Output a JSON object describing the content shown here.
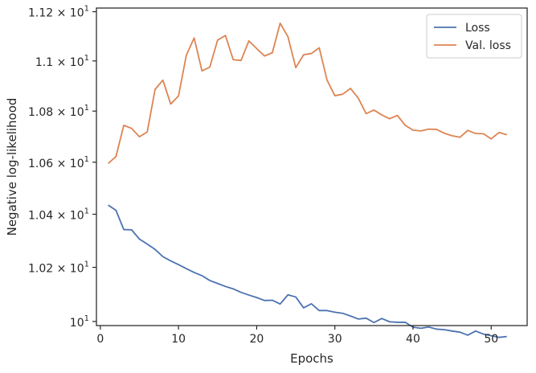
{
  "chart_data": {
    "type": "line",
    "xlabel": "Epochs",
    "ylabel": "Negative log-likelihood",
    "xlim": [
      -0.5,
      54.6
    ],
    "ylim": [
      9.985,
      11.215
    ],
    "yscale": "log",
    "grid": false,
    "legend_position": "top-right",
    "x_ticks": [
      0,
      10,
      20,
      30,
      40,
      50
    ],
    "x_tick_labels": [
      "0",
      "10",
      "20",
      "30",
      "40",
      "50"
    ],
    "y_ticks": [
      10.0,
      10.2,
      10.4,
      10.6,
      10.8,
      11.0,
      11.2
    ],
    "y_tick_labels": [
      {
        "mantissa": "",
        "base": "10",
        "exp": "1"
      },
      {
        "mantissa": "1.02 × ",
        "base": "10",
        "exp": "1"
      },
      {
        "mantissa": "1.04 × ",
        "base": "10",
        "exp": "1"
      },
      {
        "mantissa": "1.06 × ",
        "base": "10",
        "exp": "1"
      },
      {
        "mantissa": "1.08 × ",
        "base": "10",
        "exp": "1"
      },
      {
        "mantissa": "1.1 × ",
        "base": "10",
        "exp": "1"
      },
      {
        "mantissa": "1.12 × ",
        "base": "10",
        "exp": "1"
      }
    ],
    "x": [
      1,
      2,
      3,
      4,
      5,
      6,
      7,
      8,
      9,
      10,
      11,
      12,
      13,
      14,
      15,
      16,
      17,
      18,
      19,
      20,
      21,
      22,
      23,
      24,
      25,
      26,
      27,
      28,
      29,
      30,
      31,
      32,
      33,
      34,
      35,
      36,
      37,
      38,
      39,
      40,
      41,
      42,
      43,
      44,
      45,
      46,
      47,
      48,
      49,
      50,
      51,
      52
    ],
    "series": [
      {
        "name": "Loss",
        "color": "#4c72b0",
        "values": [
          10.435,
          10.415,
          10.342,
          10.341,
          10.306,
          10.287,
          10.267,
          10.24,
          10.224,
          10.21,
          10.195,
          10.181,
          10.169,
          10.151,
          10.14,
          10.129,
          10.12,
          10.107,
          10.097,
          10.088,
          10.077,
          10.078,
          10.064,
          10.098,
          10.09,
          10.05,
          10.065,
          10.04,
          10.04,
          10.034,
          10.03,
          10.02,
          10.009,
          10.012,
          9.996,
          10.011,
          9.999,
          9.997,
          9.997,
          9.979,
          9.975,
          9.98,
          9.972,
          9.97,
          9.965,
          9.961,
          9.95,
          9.965,
          9.954,
          9.948,
          9.942,
          9.945
        ]
      },
      {
        "name": "Val. loss",
        "color": "#dd8452",
        "values": [
          10.595,
          10.622,
          10.744,
          10.732,
          10.699,
          10.718,
          10.886,
          10.923,
          10.828,
          10.86,
          11.023,
          11.093,
          10.96,
          10.975,
          11.084,
          11.103,
          11.005,
          11.002,
          11.081,
          11.05,
          11.02,
          11.033,
          11.153,
          11.098,
          10.973,
          11.025,
          11.03,
          11.053,
          10.923,
          10.861,
          10.867,
          10.89,
          10.851,
          10.79,
          10.804,
          10.785,
          10.77,
          10.783,
          10.744,
          10.725,
          10.722,
          10.729,
          10.728,
          10.713,
          10.703,
          10.697,
          10.724,
          10.712,
          10.711,
          10.691,
          10.716,
          10.707
        ]
      }
    ]
  }
}
